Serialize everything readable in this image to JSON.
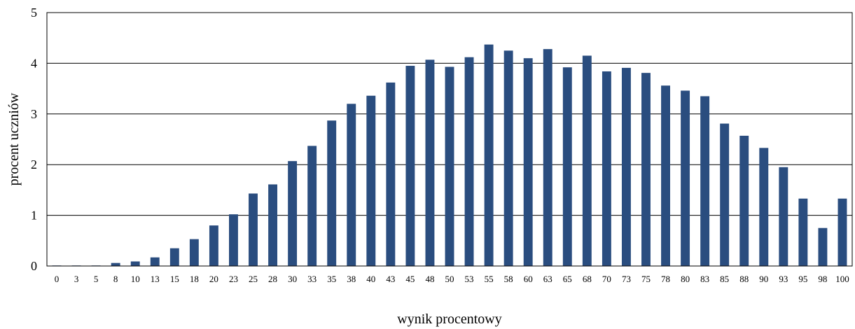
{
  "chart_data": {
    "type": "bar",
    "xlabel": "wynik procentowy",
    "ylabel": "procent uczniów",
    "ylim": [
      0,
      5
    ],
    "yticks": [
      "0",
      "1",
      "2",
      "3",
      "4",
      "5"
    ],
    "grid": "horizontal",
    "bar_color": "#2a4d7f",
    "categories": [
      "0",
      "3",
      "5",
      "8",
      "10",
      "13",
      "15",
      "18",
      "20",
      "23",
      "25",
      "28",
      "30",
      "33",
      "35",
      "38",
      "40",
      "43",
      "45",
      "48",
      "50",
      "53",
      "55",
      "58",
      "60",
      "63",
      "65",
      "68",
      "70",
      "73",
      "75",
      "78",
      "80",
      "83",
      "85",
      "88",
      "90",
      "93",
      "95",
      "98",
      "100"
    ],
    "values": [
      0.01,
      0.01,
      0.01,
      0.06,
      0.09,
      0.17,
      0.35,
      0.53,
      0.8,
      1.02,
      1.43,
      1.61,
      2.07,
      2.37,
      2.87,
      3.2,
      3.36,
      3.62,
      3.95,
      4.07,
      3.93,
      4.12,
      4.37,
      4.25,
      4.1,
      4.28,
      3.92,
      4.15,
      3.84,
      3.91,
      3.81,
      3.56,
      3.46,
      3.35,
      2.81,
      2.57,
      2.33,
      1.95,
      1.33,
      0.75,
      1.33
    ]
  }
}
